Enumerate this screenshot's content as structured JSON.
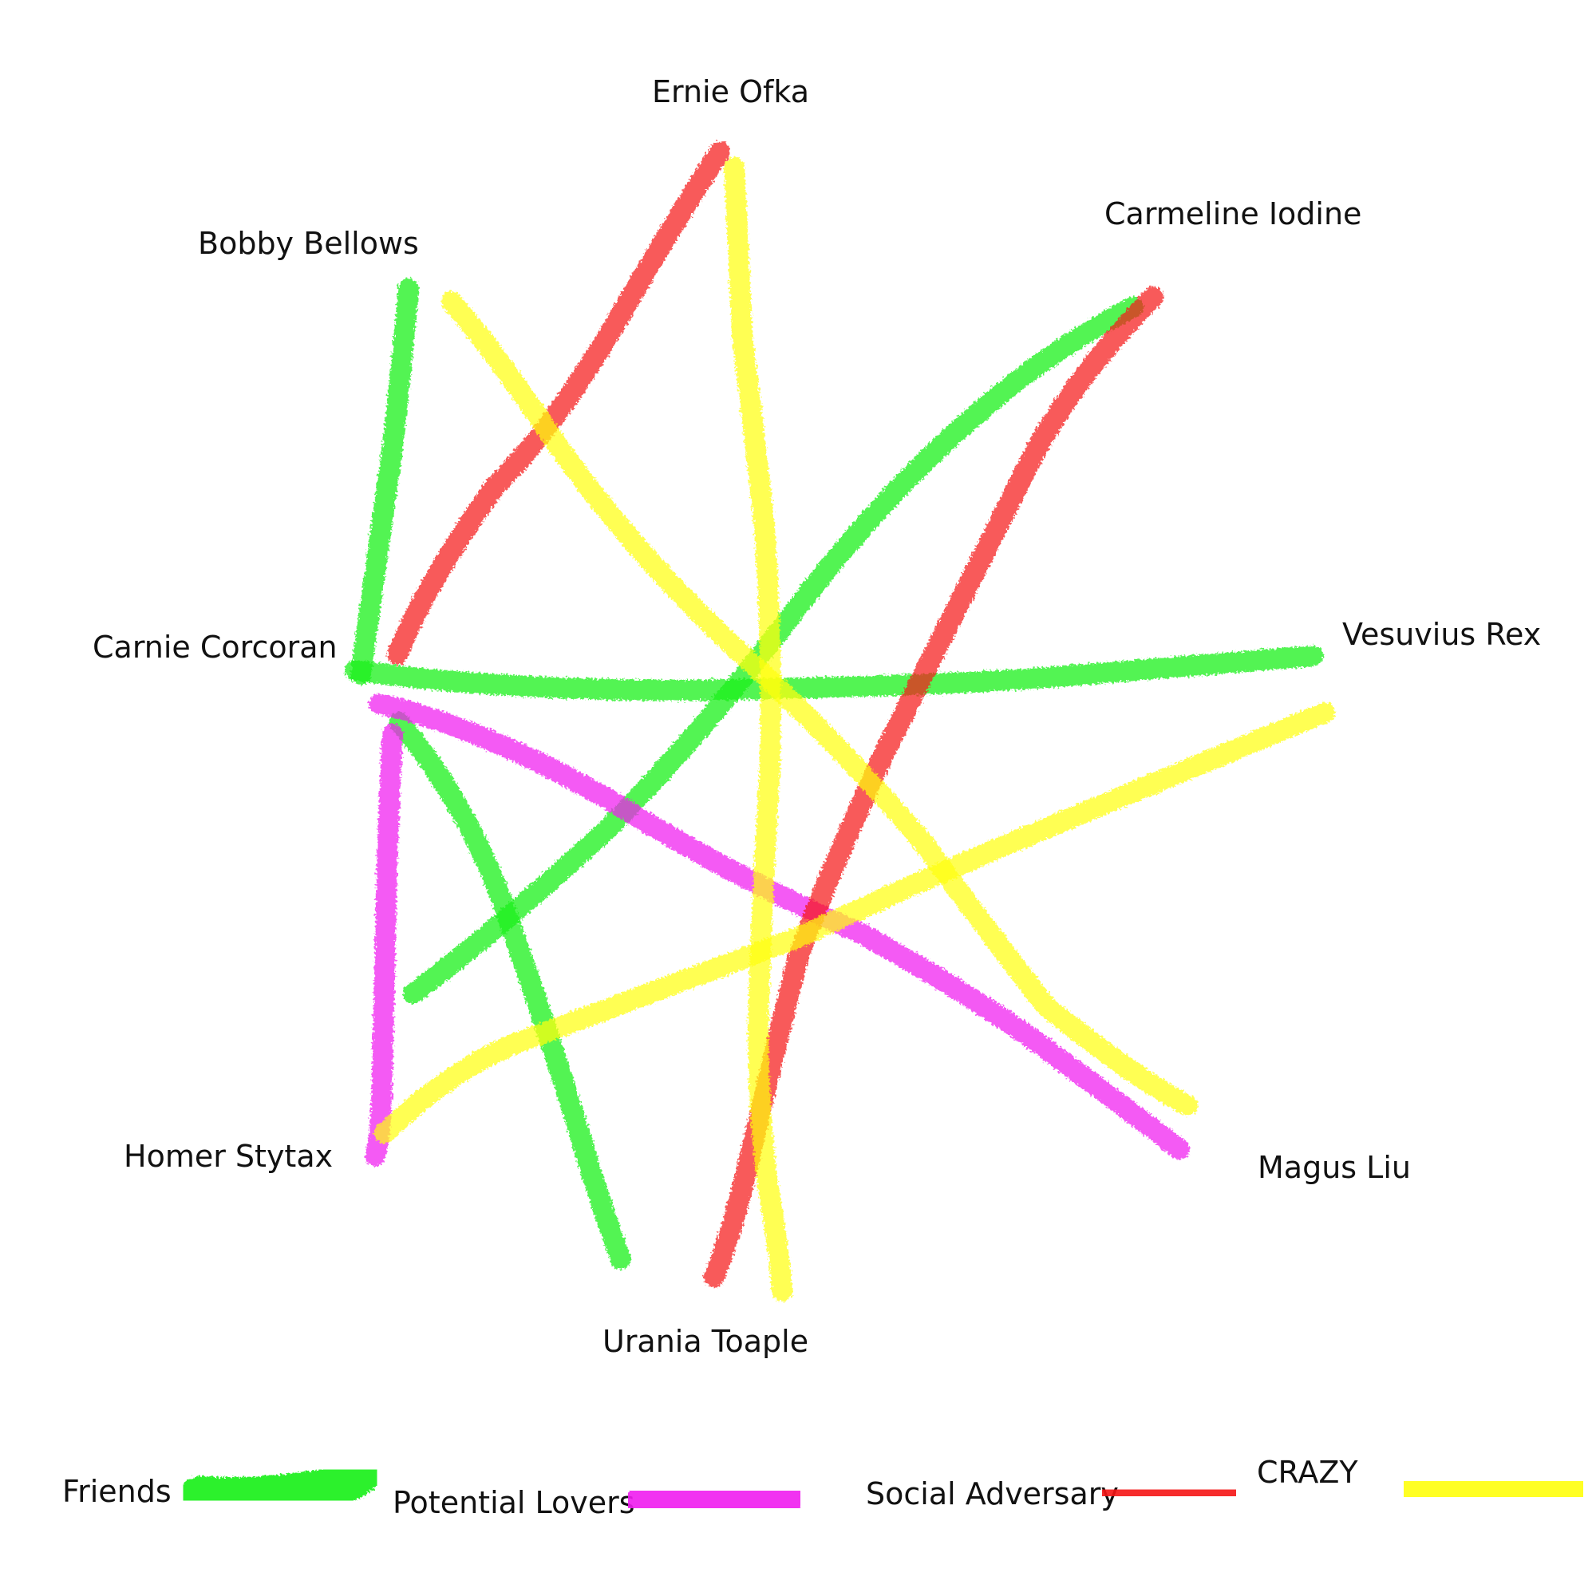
{
  "colors": {
    "friends": "#16f016",
    "lovers": "#f01cf0",
    "adversary": "#f51818",
    "crazy": "#ffff10"
  },
  "nodes": [
    {
      "id": "ernie",
      "label": "Ernie Ofka"
    },
    {
      "id": "carmeline",
      "label": "Carmeline Iodine"
    },
    {
      "id": "bobby",
      "label": "Bobby Bellows"
    },
    {
      "id": "carnie",
      "label": "Carnie Corcoran"
    },
    {
      "id": "vesuvius",
      "label": "Vesuvius Rex"
    },
    {
      "id": "homer",
      "label": "Homer Stytax"
    },
    {
      "id": "magus",
      "label": "Magus Liu"
    },
    {
      "id": "urania",
      "label": "Urania Toaple"
    }
  ],
  "edges": [
    {
      "from": "carnie",
      "to": "bobby",
      "type": "friends"
    },
    {
      "from": "carnie",
      "to": "vesuvius",
      "type": "friends"
    },
    {
      "from": "carnie",
      "to": "urania",
      "type": "friends"
    },
    {
      "from": "carmeline",
      "to": "carnie",
      "type": "friends"
    },
    {
      "from": "carnie",
      "to": "magus",
      "type": "lovers"
    },
    {
      "from": "carnie",
      "to": "homer",
      "type": "lovers"
    },
    {
      "from": "ernie",
      "to": "carnie",
      "type": "adversary"
    },
    {
      "from": "carmeline",
      "to": "urania",
      "type": "adversary"
    },
    {
      "from": "bobby",
      "to": "magus",
      "type": "crazy"
    },
    {
      "from": "ernie",
      "to": "urania",
      "type": "crazy"
    },
    {
      "from": "vesuvius",
      "to": "homer",
      "type": "crazy"
    }
  ],
  "legend": [
    {
      "type": "friends",
      "label": "Friends"
    },
    {
      "type": "lovers",
      "label": "Potential Lovers"
    },
    {
      "type": "adversary",
      "label": "Social Adversary"
    },
    {
      "type": "crazy",
      "label": "CRAZY"
    }
  ]
}
